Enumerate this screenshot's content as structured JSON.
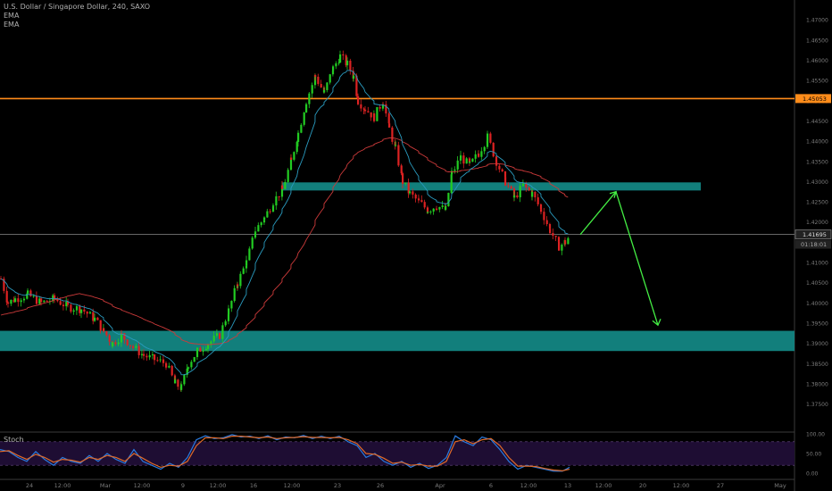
{
  "header": {
    "symbol": "U.S. Dollar / Singapore Dollar, 240, SAXO",
    "indicators": [
      "EMA",
      "EMA"
    ]
  },
  "stoch_panel": {
    "label": "Stoch"
  },
  "chart_data": {
    "type": "candlestick",
    "title": "U.S. Dollar / Singapore Dollar, 240, SAXO",
    "ylim": [
      1.3685,
      1.4749
    ],
    "y_ticks": [
      1.375,
      1.38,
      1.385,
      1.39,
      1.395,
      1.4,
      1.405,
      1.41,
      1.415,
      1.42,
      1.425,
      1.43,
      1.435,
      1.44,
      1.445,
      1.45,
      1.455,
      1.46,
      1.465,
      1.47
    ],
    "y_tick_labels": [
      "1.37500",
      "1.38000",
      "1.38500",
      "1.39000",
      "1.39500",
      "1.40000",
      "1.40500",
      "1.41000",
      "1.41500",
      "1.42000",
      "1.42500",
      "1.43000",
      "1.43500",
      "1.44000",
      "1.44500",
      "1.45000",
      "1.45500",
      "1.46000",
      "1.46500",
      "1.47000"
    ],
    "x_tick_labels": [
      "24",
      "12:00",
      "Mar",
      "12:00",
      "9",
      "12:00",
      "16",
      "12:00",
      "23",
      "26",
      "Apr",
      "6",
      "12:00",
      "13",
      "12:00",
      "20",
      "12:00",
      "27",
      "May"
    ],
    "resistance_line": {
      "price": 1.45053,
      "label": "1.45053",
      "color": "#ff8c1a"
    },
    "current_price": {
      "price": 1.41695,
      "label": "1.41695",
      "countdown": "01:18:01"
    },
    "zones": [
      {
        "name": "upper-zone",
        "from": 1.4278,
        "to": 1.4298,
        "color": "#138a87"
      },
      {
        "name": "lower-zone",
        "from": 1.3881,
        "to": 1.3931,
        "color": "#138a87"
      }
    ],
    "projection": [
      {
        "point": "start",
        "price": 1.4169
      },
      {
        "point": "peak",
        "price": 1.4275
      },
      {
        "point": "target",
        "price": 1.3945
      }
    ],
    "ema_fast_color": "#2a9bbf",
    "ema_slow_color": "#cc3a3a",
    "candle_up_color": "#22cc22",
    "candle_down_color": "#dd2222",
    "projection_color": "#44ee44",
    "segments": [
      [
        0,
        1.406
      ],
      [
        8,
        1.4
      ],
      [
        16,
        1.401
      ],
      [
        30,
        1.402
      ],
      [
        45,
        1.4
      ],
      [
        60,
        1.401
      ],
      [
        75,
        1.399
      ],
      [
        90,
        1.3985
      ],
      [
        105,
        1.396
      ],
      [
        115,
        1.393
      ],
      [
        125,
        1.39
      ],
      [
        135,
        1.392
      ],
      [
        148,
        1.389
      ],
      [
        160,
        1.387
      ],
      [
        172,
        1.386
      ],
      [
        185,
        1.385
      ],
      [
        195,
        1.38
      ],
      [
        202,
        1.379
      ],
      [
        210,
        1.385
      ],
      [
        220,
        1.388
      ],
      [
        232,
        1.39
      ],
      [
        245,
        1.392
      ],
      [
        255,
        1.398
      ],
      [
        265,
        1.405
      ],
      [
        275,
        1.41
      ],
      [
        285,
        1.418
      ],
      [
        295,
        1.421
      ],
      [
        305,
        1.425
      ],
      [
        315,
        1.428
      ],
      [
        325,
        1.435
      ],
      [
        333,
        1.442
      ],
      [
        342,
        1.45
      ],
      [
        352,
        1.456
      ],
      [
        362,
        1.452
      ],
      [
        372,
        1.458
      ],
      [
        380,
        1.461
      ],
      [
        388,
        1.459
      ],
      [
        395,
        1.456
      ],
      [
        400,
        1.45
      ],
      [
        408,
        1.448
      ],
      [
        418,
        1.446
      ],
      [
        428,
        1.45
      ],
      [
        435,
        1.443
      ],
      [
        442,
        1.438
      ],
      [
        450,
        1.43
      ],
      [
        458,
        1.427
      ],
      [
        468,
        1.425
      ],
      [
        478,
        1.423
      ],
      [
        488,
        1.424
      ],
      [
        498,
        1.423
      ],
      [
        505,
        1.432
      ],
      [
        515,
        1.436
      ],
      [
        525,
        1.434
      ],
      [
        535,
        1.437
      ],
      [
        545,
        1.441
      ],
      [
        555,
        1.435
      ],
      [
        565,
        1.43
      ],
      [
        575,
        1.426
      ],
      [
        585,
        1.429
      ],
      [
        595,
        1.427
      ],
      [
        605,
        1.423
      ],
      [
        615,
        1.418
      ],
      [
        625,
        1.414
      ],
      [
        632,
        1.415
      ],
      [
        638,
        1.4169
      ]
    ],
    "stoch": {
      "levels": [
        80,
        20
      ],
      "tick_labels": [
        "100.00",
        "50.00",
        "0.00"
      ],
      "k_color": "#2a7be0",
      "d_color": "#e06a2a",
      "band_color": "#1e0d33",
      "points_k": [
        [
          0,
          60
        ],
        [
          10,
          55
        ],
        [
          20,
          40
        ],
        [
          30,
          30
        ],
        [
          40,
          55
        ],
        [
          50,
          35
        ],
        [
          60,
          20
        ],
        [
          70,
          40
        ],
        [
          80,
          30
        ],
        [
          90,
          25
        ],
        [
          100,
          45
        ],
        [
          110,
          30
        ],
        [
          120,
          50
        ],
        [
          130,
          35
        ],
        [
          140,
          25
        ],
        [
          150,
          60
        ],
        [
          160,
          30
        ],
        [
          170,
          20
        ],
        [
          180,
          10
        ],
        [
          190,
          25
        ],
        [
          200,
          15
        ],
        [
          210,
          40
        ],
        [
          220,
          85
        ],
        [
          230,
          95
        ],
        [
          240,
          88
        ],
        [
          250,
          90
        ],
        [
          260,
          98
        ],
        [
          270,
          92
        ],
        [
          280,
          94
        ],
        [
          290,
          88
        ],
        [
          300,
          95
        ],
        [
          310,
          85
        ],
        [
          320,
          92
        ],
        [
          330,
          90
        ],
        [
          340,
          96
        ],
        [
          350,
          88
        ],
        [
          360,
          94
        ],
        [
          370,
          88
        ],
        [
          380,
          94
        ],
        [
          390,
          80
        ],
        [
          400,
          70
        ],
        [
          410,
          40
        ],
        [
          420,
          50
        ],
        [
          430,
          30
        ],
        [
          440,
          20
        ],
        [
          450,
          30
        ],
        [
          460,
          15
        ],
        [
          470,
          25
        ],
        [
          480,
          12
        ],
        [
          490,
          20
        ],
        [
          500,
          40
        ],
        [
          510,
          95
        ],
        [
          520,
          80
        ],
        [
          530,
          70
        ],
        [
          540,
          92
        ],
        [
          550,
          85
        ],
        [
          560,
          60
        ],
        [
          570,
          30
        ],
        [
          580,
          10
        ],
        [
          590,
          20
        ],
        [
          600,
          15
        ],
        [
          610,
          10
        ],
        [
          620,
          5
        ],
        [
          630,
          5
        ],
        [
          638,
          15
        ]
      ],
      "points_d": [
        [
          0,
          55
        ],
        [
          10,
          57
        ],
        [
          20,
          45
        ],
        [
          30,
          35
        ],
        [
          40,
          48
        ],
        [
          50,
          40
        ],
        [
          60,
          28
        ],
        [
          70,
          35
        ],
        [
          80,
          33
        ],
        [
          90,
          28
        ],
        [
          100,
          40
        ],
        [
          110,
          35
        ],
        [
          120,
          45
        ],
        [
          130,
          40
        ],
        [
          140,
          30
        ],
        [
          150,
          50
        ],
        [
          160,
          38
        ],
        [
          170,
          25
        ],
        [
          180,
          15
        ],
        [
          190,
          20
        ],
        [
          200,
          18
        ],
        [
          210,
          30
        ],
        [
          220,
          70
        ],
        [
          230,
          90
        ],
        [
          240,
          90
        ],
        [
          250,
          88
        ],
        [
          260,
          94
        ],
        [
          270,
          94
        ],
        [
          280,
          92
        ],
        [
          290,
          90
        ],
        [
          300,
          92
        ],
        [
          310,
          88
        ],
        [
          320,
          90
        ],
        [
          330,
          91
        ],
        [
          340,
          93
        ],
        [
          350,
          91
        ],
        [
          360,
          91
        ],
        [
          370,
          90
        ],
        [
          380,
          91
        ],
        [
          390,
          85
        ],
        [
          400,
          75
        ],
        [
          410,
          50
        ],
        [
          420,
          48
        ],
        [
          430,
          38
        ],
        [
          440,
          25
        ],
        [
          450,
          28
        ],
        [
          460,
          20
        ],
        [
          470,
          22
        ],
        [
          480,
          18
        ],
        [
          490,
          18
        ],
        [
          500,
          30
        ],
        [
          510,
          80
        ],
        [
          520,
          85
        ],
        [
          530,
          75
        ],
        [
          540,
          85
        ],
        [
          550,
          88
        ],
        [
          560,
          70
        ],
        [
          570,
          40
        ],
        [
          580,
          18
        ],
        [
          590,
          18
        ],
        [
          600,
          17
        ],
        [
          610,
          12
        ],
        [
          620,
          8
        ],
        [
          630,
          6
        ],
        [
          638,
          10
        ]
      ]
    }
  }
}
